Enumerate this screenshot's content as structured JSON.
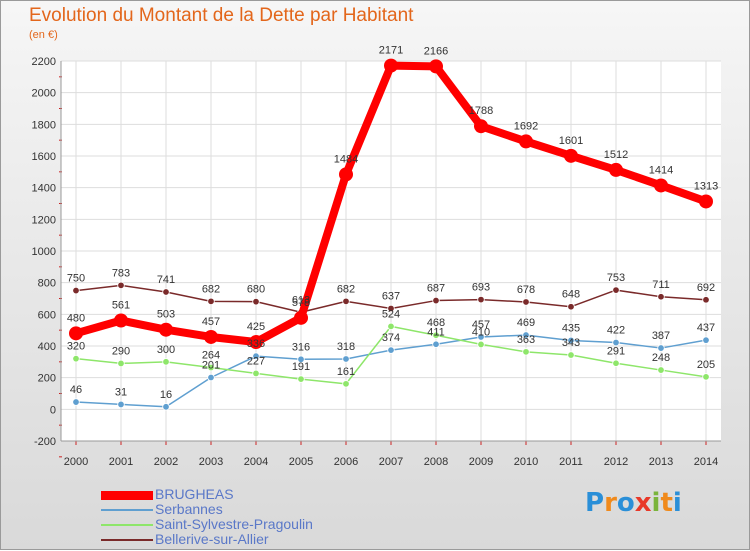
{
  "header": {
    "title": "Evolution du Montant de la Dette par Habitant",
    "subtitle": "(en €)"
  },
  "colors": {
    "title": "#e3661b",
    "legend_text": "#5a78c8"
  },
  "logo": {
    "letters": [
      "P",
      "r",
      "o",
      "x",
      "i",
      "t",
      "i"
    ],
    "colors": [
      "#2a8fd8",
      "#f08a1c",
      "#2a8fd8",
      "#e83828",
      "#7ab43c",
      "#f08a1c",
      "#2a8fd8"
    ]
  },
  "chart_data": {
    "type": "line",
    "x": [
      "2000",
      "2001",
      "2002",
      "2003",
      "2004",
      "2005",
      "2006",
      "2007",
      "2008",
      "2009",
      "2010",
      "2011",
      "2012",
      "2013",
      "2014"
    ],
    "ylim": [
      -200,
      2200
    ],
    "yticks": [
      "-200",
      "0",
      "200",
      "400",
      "600",
      "800",
      "1000",
      "1200",
      "1400",
      "1600",
      "1800",
      "2000",
      "2200"
    ],
    "grid": true,
    "legend_position": "bottom-left",
    "series": [
      {
        "name": "BRUGHEAS",
        "color": "#ff0000",
        "values": [
          480,
          561,
          503,
          457,
          425,
          578,
          1484,
          2171,
          2166,
          1788,
          1692,
          1601,
          1512,
          1414,
          1313
        ],
        "labels": [
          "480",
          "561",
          "503",
          "457",
          "425",
          "578",
          "1484",
          "2171",
          "2166",
          "1788",
          "1692",
          "1601",
          "1512",
          "1414",
          "1313"
        ]
      },
      {
        "name": "Serbannes",
        "color": "#5f9fd0",
        "values": [
          46,
          31,
          16,
          201,
          336,
          316,
          318,
          374,
          411,
          457,
          469,
          435,
          422,
          387,
          437
        ],
        "labels": [
          "46",
          "31",
          "16",
          "201",
          "336",
          "316",
          "318",
          "374",
          "411",
          "457",
          "469",
          "435",
          "422",
          "387",
          "437"
        ]
      },
      {
        "name": "Saint-Sylvestre-Pragoulin",
        "color": "#8ee66a",
        "values": [
          320,
          290,
          300,
          264,
          227,
          191,
          161,
          524,
          468,
          410,
          363,
          343,
          291,
          248,
          205
        ],
        "labels": [
          "320",
          "290",
          "300",
          "264",
          "227",
          "191",
          "161",
          "524",
          "468",
          "410",
          "363",
          "343",
          "291",
          "248",
          "205"
        ]
      },
      {
        "name": "Bellerive-sur-Allier",
        "color": "#7a2a2a",
        "values": [
          750,
          783,
          741,
          682,
          680,
          613,
          682,
          637,
          687,
          693,
          678,
          648,
          753,
          711,
          692
        ],
        "labels": [
          "750",
          "783",
          "741",
          "682",
          "680",
          "613",
          "682",
          "637",
          "687",
          "693",
          "678",
          "648",
          "753",
          "711",
          "692"
        ]
      }
    ]
  }
}
